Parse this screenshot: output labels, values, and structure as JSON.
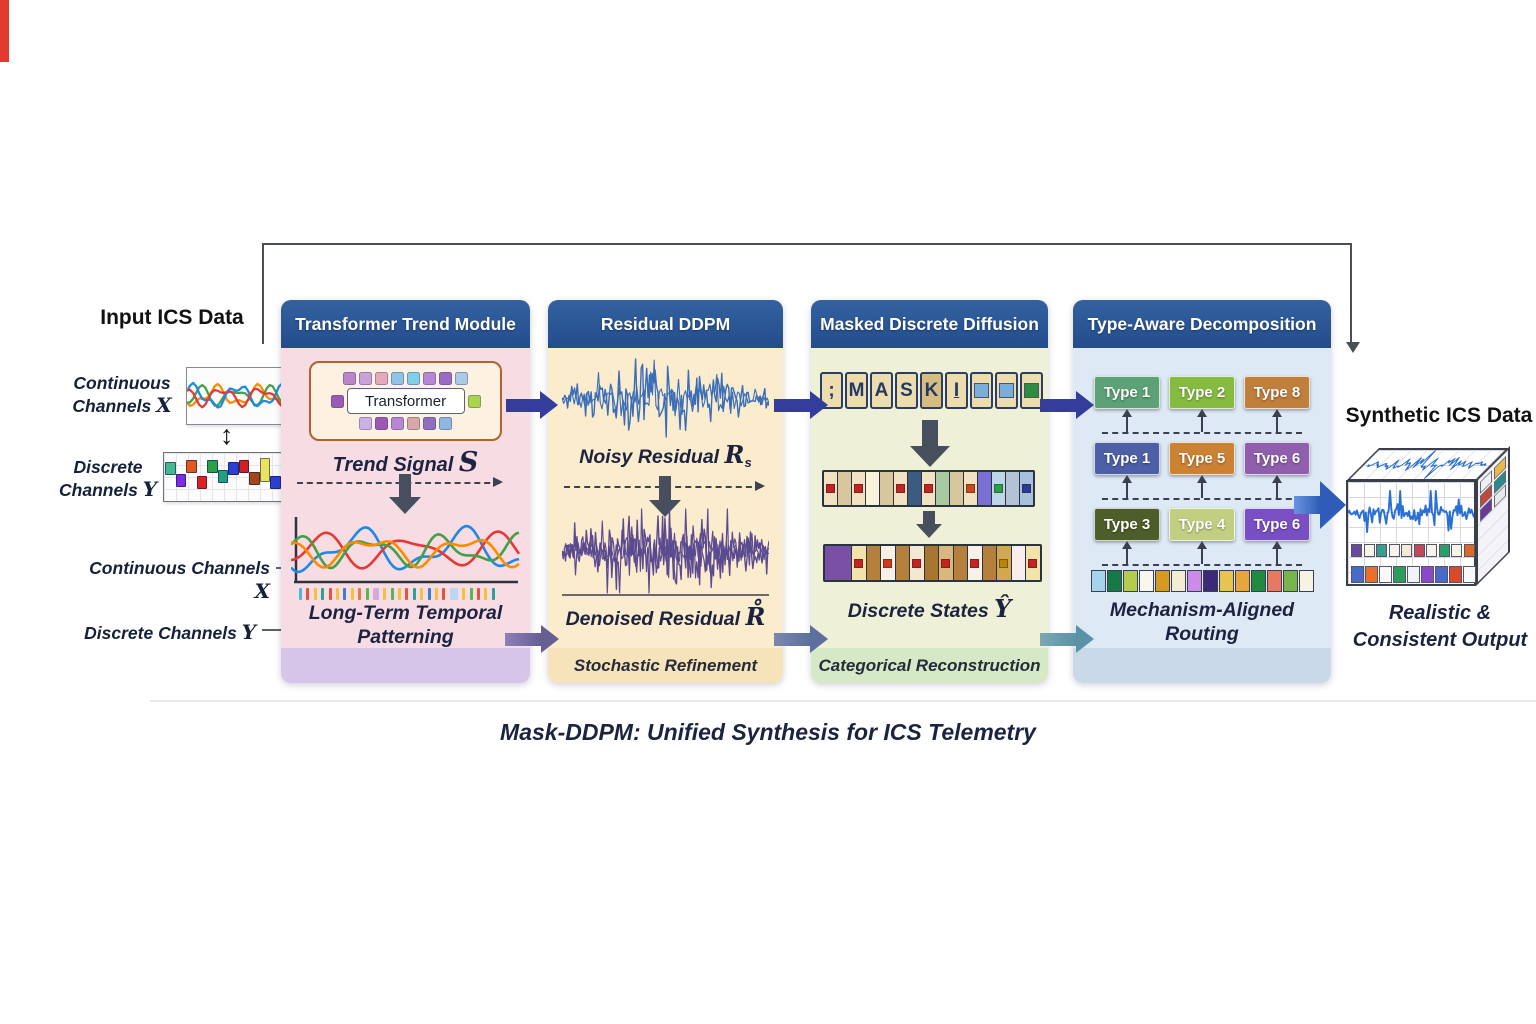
{
  "caption": "Mask-DDPM: Unified Synthesis for ICS Telemetry",
  "palette": {
    "header_blue": "#2b579a",
    "arrow_indigo": "#343d9b",
    "arrow_slate": "#655f92",
    "arrow_teal": "#5b93a6",
    "arrow_output_blue": "#2f5cb8",
    "loop_gray": "#4a4f55",
    "body_pink": "#f8dce3",
    "body_cream": "#fbeccd",
    "body_green": "#eef0d8",
    "body_blue": "#dde9f5",
    "trend_lines": [
      "#1e88e5",
      "#e53935",
      "#43a047",
      "#fb8c00"
    ],
    "input_lines": [
      "#fb8c00",
      "#43a047",
      "#1e88e5",
      "#e53935"
    ],
    "noisy_wave": "#3a6db8",
    "denoised_wave": "#5b4a90",
    "cube_wave": "#2a6fd4"
  },
  "input": {
    "title": "Input ICS Data",
    "continuous_line1": "Continuous",
    "continuous_line2": "Channels",
    "continuous_var": "X",
    "discrete_line1": "Discrete",
    "discrete_line2": "Channels",
    "discrete_var": "Y",
    "updown_arrow": "↕",
    "inline_continuous": "Continuous Channels",
    "inline_continuous_var": "X",
    "inline_discrete": "Discrete Channels",
    "inline_discrete_var": "Y",
    "bars": [
      {
        "bg": "#46b890",
        "mt": 8
      },
      {
        "bg": "#7b2be2",
        "mt": 20
      },
      {
        "bg": "#e05a20",
        "mt": 6
      },
      {
        "bg": "#de2020",
        "mt": 22
      },
      {
        "bg": "#28a048",
        "mt": 6
      },
      {
        "bg": "#20a080",
        "mt": 16
      },
      {
        "bg": "#2a40d0",
        "mt": 8
      },
      {
        "bg": "#d02020",
        "mt": 6
      },
      {
        "bg": "#a04818",
        "mt": 18
      },
      {
        "bg": "#e8e460",
        "mt": 4,
        "h": 24
      },
      {
        "bg": "#2a40d0",
        "mt": 22
      },
      {
        "bg": "#7b30c0",
        "mt": 18
      }
    ]
  },
  "modules": {
    "trend": {
      "header": "Transformer Trend Module",
      "transformer_label": "Transformer",
      "signal_label": "Trend Signal",
      "signal_var": "S",
      "caption1": "Long-Term Temporal",
      "caption2": "Patterning",
      "tokens_top": [
        "#bb86c9",
        "#c9a2d6",
        "#e6a9bb",
        "#8fc3e8",
        "#7fd0e8",
        "#b787d6",
        "#9a6bc0",
        "#a9cbe8"
      ],
      "tokens_mid_left": [
        "#9b59b6"
      ],
      "tokens_mid_right": [
        "#a8d44e"
      ],
      "tokens_bottom": [
        "#cdb3e3",
        "#9b59b6",
        "#b787d6",
        "#d8a8a8",
        "#8f6fc0",
        "#8fb8e0"
      ],
      "ticks": [
        "#4ab8d8",
        "#e5533a",
        "#f2c23a",
        "#2aa198",
        "#e5533a",
        "#f2c23a",
        "#3a7bd5",
        "#f2c23a",
        "#e87a3a",
        "#57b84a",
        {
          "bg": "#d5a9e0",
          "w": 6
        },
        "#f2c23a",
        "#57b84a",
        "#f2c23a",
        "#e5533a",
        "#2aa198",
        "#f2c23a",
        "#3a7bd5",
        "#f2c23a",
        "#e5533a",
        {
          "bg": "#b9d6f2",
          "w": 8
        },
        "#f2c23a",
        "#57b84a",
        "#e5533a",
        "#f2c23a",
        "#2aa198"
      ]
    },
    "residual": {
      "header": "Residual DDPM",
      "noisy_label": "Noisy Residual",
      "noisy_var": "R",
      "noisy_sub": "s",
      "denoised_label": "Denoised Residual",
      "denoised_var": "R̊",
      "footer": "Stochastic Refinement"
    },
    "masked": {
      "header": "Masked Discrete Diffusion",
      "mask_tiles": [
        {
          "label": ";"
        },
        {
          "label": "M"
        },
        {
          "label": "A"
        },
        {
          "label": "S"
        },
        {
          "label": "K",
          "bg": "#d6bc80"
        },
        {
          "label": "I",
          "u": true
        },
        {
          "inner": "#7aadd8"
        },
        {
          "inner": "#7aadd8"
        },
        {
          "inner": "#2e8b45"
        }
      ],
      "noised_cells": [
        {
          "bg": "#f3e2c2",
          "inner": "#c42323"
        },
        {
          "bg": "#d8c79e"
        },
        {
          "bg": "#f3e2c2",
          "inner": "#c42323"
        },
        {
          "bg": "#f8f2da"
        },
        {
          "bg": "#d8c79e"
        },
        {
          "bg": "#f3e2c2",
          "inner": "#c42323"
        },
        {
          "bg": "#3d5a80"
        },
        {
          "bg": "#f3e2c2",
          "inner": "#c42323"
        },
        {
          "bg": "#a9c9a2"
        },
        {
          "bg": "#d8c79e"
        },
        {
          "bg": "#f3e2c2",
          "inner": "#c8491c"
        },
        {
          "bg": "#7a6fd2"
        },
        {
          "bg": "#bcd6e8",
          "inner": "#2a9e4a"
        },
        {
          "bg": "#b2c3d6"
        },
        {
          "bg": "#a9c0dc",
          "inner": "#2a3a99"
        }
      ],
      "state_cells": [
        {
          "bg": "#7a4fa6",
          "w": 26
        },
        {
          "bg": "#f2e2ac",
          "inner": "#c42323"
        },
        {
          "bg": "#b5803c"
        },
        {
          "bg": "#f8efe6",
          "inner": "#cc3a1a"
        },
        {
          "bg": "#b5803c"
        },
        {
          "bg": "#f4e8d2",
          "inner": "#c42323"
        },
        {
          "bg": "#a8762f"
        },
        {
          "bg": "#d8b87c",
          "inner": "#c42323"
        },
        {
          "bg": "#b5803c"
        },
        {
          "bg": "#f8f0ea",
          "inner": "#c42323"
        },
        {
          "bg": "#b5803c"
        },
        {
          "bg": "#d2a84e",
          "inner": "#b8860b"
        },
        {
          "bg": "#f8eeee"
        },
        {
          "bg": "#f2e2ac",
          "inner": "#c42323"
        }
      ],
      "states_label": "Discrete States",
      "states_var": "Ŷ",
      "footer": "Categorical Reconstruction"
    },
    "typeaware": {
      "header": "Type-Aware Decomposition",
      "row1": [
        {
          "label": "Type 1",
          "bg": "#5ca276"
        },
        {
          "label": "Type 2",
          "bg": "#86bb40"
        },
        {
          "label": "Type 8",
          "bg": "#c17f3c"
        }
      ],
      "row2": [
        {
          "label": "Type 1",
          "bg": "#4d5fa6"
        },
        {
          "label": "Type 5",
          "bg": "#cc8233"
        },
        {
          "label": "Type 6",
          "bg": "#8f5fae"
        }
      ],
      "row3": [
        {
          "label": "Type 3",
          "bg": "#4e5e2a"
        },
        {
          "label": "Type 4",
          "bg": "#c3cf80"
        },
        {
          "label": "Type 6",
          "bg": "#7b4fc4"
        }
      ],
      "strip": [
        "#a6d2ee",
        "#157a45",
        "#b4cc4e",
        "#f8f6ee",
        "#d79a20",
        "#f3ecd2",
        "#cc8be6",
        "#3a2a78",
        "#e6c44e",
        "#e6a63c",
        "#1f8a40",
        "#e67a60",
        "#78b44c",
        "#f6f2e4"
      ],
      "caption1": "Mechanism-Aligned",
      "caption2": "Routing"
    }
  },
  "output": {
    "title": "Synthetic ICS Data",
    "caption1": "Realistic &",
    "caption2": "Consistent Output",
    "cube_row1": [
      "#6a4a9e",
      "#f8f4ec",
      "#3a9e8e",
      "#f8f4ec",
      "#f0ecd8",
      "#c04a5a",
      "#f8f4ec",
      "#2a9e6a",
      "#f8f4ec",
      "#d86a2a"
    ],
    "cube_row2": [
      "#4a6ac8",
      "#e8702a",
      "#f8f8f8",
      "#2a9e5a",
      "#f0f4f8",
      "#8a4ac8",
      "#4a6ac8",
      "#d84a2a",
      "#f8f8f8"
    ],
    "cube_patches": [
      "#f0f0f0",
      "#e8b84a",
      "#c04a3a",
      "#2a8a8a",
      "#6a3a9a",
      "#e8e8e8"
    ]
  }
}
